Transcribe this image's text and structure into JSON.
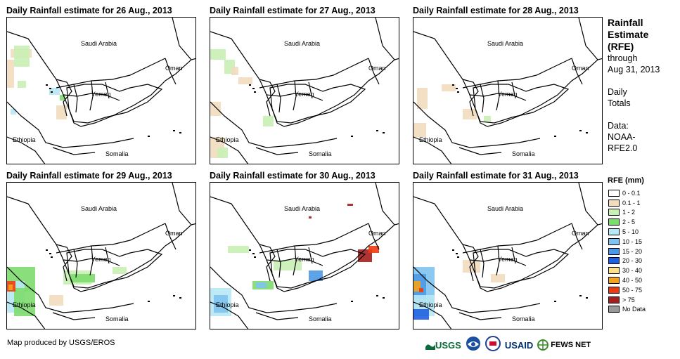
{
  "panels": [
    {
      "title": "Daily Rainfall estimate for 26 Aug., 2013"
    },
    {
      "title": "Daily Rainfall estimate for 27 Aug., 2013"
    },
    {
      "title": "Daily Rainfall estimate for 28 Aug., 2013"
    },
    {
      "title": "Daily Rainfall estimate for 29 Aug., 2013"
    },
    {
      "title": "Daily Rainfall estimate for 30 Aug., 2013"
    },
    {
      "title": "Daily Rainfall estimate for 31 Aug., 2013"
    }
  ],
  "map_labels": {
    "saudi": "Saudi Arabia",
    "oman": "Oman",
    "yemen": "Yemen",
    "ethiopia": "Ethiopia",
    "somalia": "Somalia"
  },
  "sidebar": {
    "title_lines": [
      "Rainfall",
      "Estimate",
      "(RFE)"
    ],
    "through": "through",
    "date": "Aug 31, 2013",
    "totals_lines": [
      "Daily",
      "Totals"
    ],
    "data_lines": [
      "Data:",
      "NOAA-",
      "RFE2.0"
    ]
  },
  "legend": {
    "title": "RFE (mm)",
    "items": [
      {
        "label": "0 - 0.1",
        "color": "#ffffff"
      },
      {
        "label": "0.1 - 1",
        "color": "#f2dcbc"
      },
      {
        "label": "1 - 2",
        "color": "#c9f0b5"
      },
      {
        "label": "2 - 5",
        "color": "#7ddc6e"
      },
      {
        "label": "5 - 10",
        "color": "#b7e8f5"
      },
      {
        "label": "10 - 15",
        "color": "#7fc3ee"
      },
      {
        "label": "15 - 20",
        "color": "#4b99e6"
      },
      {
        "label": "20 - 30",
        "color": "#1f5fe0"
      },
      {
        "label": "30 - 40",
        "color": "#fce08a"
      },
      {
        "label": "40 - 50",
        "color": "#f5a31a"
      },
      {
        "label": "50 - 75",
        "color": "#ee3a0f"
      },
      {
        "label": "> 75",
        "color": "#a51d1d"
      },
      {
        "label": "No Data",
        "color": "#999999"
      }
    ]
  },
  "footer": {
    "credit": "Map produced by USGS/EROS"
  },
  "logos": {
    "usgs": "USGS",
    "usaid": "USAID",
    "fewsnet": "FEWS NET"
  }
}
